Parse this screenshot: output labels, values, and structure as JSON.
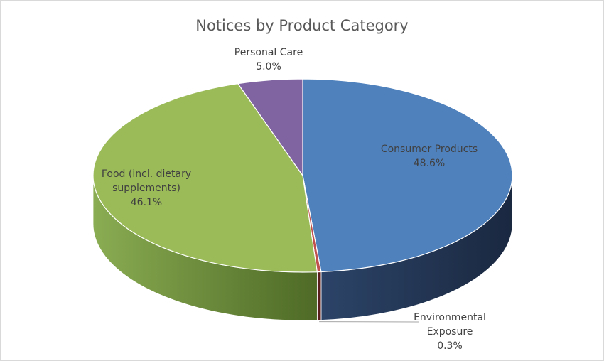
{
  "chart_data": {
    "type": "pie",
    "style": "3d",
    "title": "Notices by Product Category",
    "slices": [
      {
        "label_lines": [
          "Consumer Products"
        ],
        "percent_label": "48.6%",
        "value": 48.6,
        "color": "#4f81bd",
        "side_color": "#1f3050"
      },
      {
        "label_lines": [
          "Environmental",
          "Exposure"
        ],
        "percent_label": "0.3%",
        "value": 0.3,
        "color": "#c0504d",
        "side_color": "#5a1e1d"
      },
      {
        "label_lines": [
          "Food (incl. dietary",
          "supplements)"
        ],
        "percent_label": "46.1%",
        "value": 46.1,
        "color": "#9bbb59",
        "side_color": "#5f7f33"
      },
      {
        "label_lines": [
          "Personal Care"
        ],
        "percent_label": "5.0%",
        "value": 5.0,
        "color": "#8064a2",
        "side_color": "#4b3566"
      }
    ],
    "legend": "none"
  }
}
